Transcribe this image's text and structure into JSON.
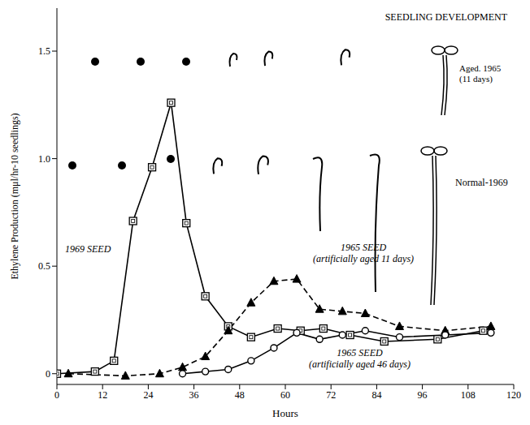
{
  "chart_data": {
    "type": "line",
    "title": "SEEDLING DEVELOPMENT",
    "x_label": "Hours",
    "y_label": "Ethylene Production (mμl/hr-10 seedlings)",
    "xlim": [
      0,
      120
    ],
    "xticks": [
      0,
      12,
      24,
      36,
      48,
      60,
      72,
      84,
      96,
      108,
      120
    ],
    "ylim": [
      -0.05,
      1.7
    ],
    "yticks": [
      0,
      0.5,
      {
        "value": 1,
        "label": "1.0"
      },
      1.5
    ],
    "grid": false,
    "annotations": [
      "Aged. 1965 (11 days)",
      "Normal-1969"
    ],
    "series": [
      {
        "name": "1969 SEED",
        "color": "#000000",
        "marker": "square",
        "line_style": "solid",
        "x": [
          0,
          10,
          15,
          20,
          25,
          30,
          34,
          39,
          45,
          51,
          58,
          64,
          70,
          77,
          86,
          100,
          112
        ],
        "values": [
          0,
          0.01,
          0.06,
          0.71,
          0.96,
          1.26,
          0.7,
          0.36,
          0.22,
          0.17,
          0.21,
          0.2,
          0.21,
          0.18,
          0.15,
          0.16,
          0.2
        ]
      },
      {
        "name": "1965 SEED (artificially aged 11 days)",
        "color": "#000000",
        "marker": "triangle",
        "line_style": "dashed",
        "x": [
          3,
          18,
          27,
          33,
          39,
          45,
          51,
          57,
          63,
          69,
          75,
          81,
          90,
          102,
          114
        ],
        "values": [
          0,
          -0.01,
          0,
          0.03,
          0.08,
          0.2,
          0.33,
          0.43,
          0.44,
          0.3,
          0.29,
          0.28,
          0.22,
          0.2,
          0.22
        ]
      },
      {
        "name": "1965 SEED (artificially aged 46 days)",
        "color": "#000000",
        "marker": "circle",
        "line_style": "solid",
        "x": [
          33,
          39,
          45,
          51,
          57,
          63,
          69,
          75,
          81,
          90,
          102,
          114
        ],
        "values": [
          0,
          0.01,
          0.02,
          0.06,
          0.12,
          0.19,
          0.16,
          0.18,
          0.2,
          0.17,
          0.18,
          0.19
        ]
      }
    ]
  }
}
